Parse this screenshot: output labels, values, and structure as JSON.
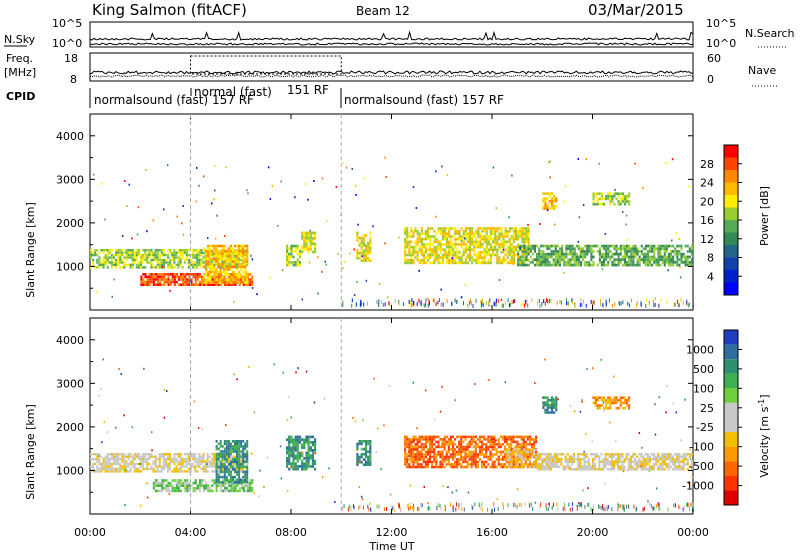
{
  "header": {
    "station": "King Salmon (fitACF)",
    "beam": "Beam 12",
    "date": "03/Mar/2015"
  },
  "strip_labels": {
    "nsky": "N.Sky",
    "freq": "Freq.",
    "freq_unit": "[MHz]",
    "cpid": "CPID",
    "nsearch": "N.Search",
    "nave": "Nave",
    "nsky_ticks": [
      "10^5",
      "10^0"
    ],
    "nsearch_ticks": [
      "10^5",
      "10^0"
    ],
    "freq_ticks": [
      "18",
      "8"
    ],
    "nave_ticks": [
      "60",
      "0"
    ]
  },
  "cpid_segments": [
    {
      "label": "normalsound (fast) 157 RF",
      "start_h": 0,
      "end_h": 4.0
    },
    {
      "label": "normal (fast)",
      "start_h": 4.0,
      "end_h": 6.0
    },
    {
      "label": "151 RF",
      "start_h": 6.0,
      "end_h": 10.0
    },
    {
      "label": "normalsound (fast) 157 RF",
      "start_h": 10.0,
      "end_h": 24.0
    }
  ],
  "colorbars": {
    "power": {
      "label": "Power [dB]",
      "ticks": [
        "28",
        "24",
        "20",
        "16",
        "12",
        "8",
        "4"
      ],
      "colors": [
        "#ff0000",
        "#ff4400",
        "#ff8800",
        "#ffbb00",
        "#ffee00",
        "#99cc33",
        "#55aa55",
        "#338855",
        "#226688",
        "#1144aa",
        "#0022cc",
        "#0000ff"
      ]
    },
    "velocity": {
      "label": "Velocity",
      "unit": "[m s",
      "unit_exp": "-1",
      "unit_close": "]",
      "ticks": [
        "1000",
        "500",
        "100",
        "25",
        "-25",
        "-100",
        "-500",
        "-1000"
      ],
      "colors": [
        "#1f3fbf",
        "#2f6f9f",
        "#2f8f6f",
        "#3faf4f",
        "#6fcf3f",
        "#c8c8c8",
        "#c8c8c8",
        "#f0c000",
        "#ff9900",
        "#ff6600",
        "#ff3300",
        "#e00000"
      ]
    }
  },
  "chart_data": [
    {
      "type": "heatmap",
      "name": "power",
      "ylabel": "Slant Range [km]",
      "xlabel": "Time UT",
      "ylim": [
        0,
        4500
      ],
      "yticks": [
        1000,
        2000,
        3000,
        4000
      ],
      "xlim": [
        0,
        24
      ],
      "xtick_labels": [
        "00:00",
        "04:00",
        "08:00",
        "12:00",
        "16:00",
        "20:00",
        "00:00"
      ],
      "regions": [
        {
          "t0": 0.0,
          "t1": 6.3,
          "r0": 950,
          "r1": 1400,
          "level": 6
        },
        {
          "t0": 2.0,
          "t1": 6.5,
          "r0": 550,
          "r1": 850,
          "level": 10
        },
        {
          "t0": 4.5,
          "t1": 6.3,
          "r0": 600,
          "r1": 1500,
          "level": 8
        },
        {
          "t0": 7.8,
          "t1": 8.4,
          "r0": 1000,
          "r1": 1500,
          "level": 6
        },
        {
          "t0": 8.4,
          "t1": 9.0,
          "r0": 1300,
          "r1": 1800,
          "level": 7
        },
        {
          "t0": 10.6,
          "t1": 11.2,
          "r0": 1100,
          "r1": 1800,
          "level": 7
        },
        {
          "t0": 12.5,
          "t1": 17.5,
          "r0": 1050,
          "r1": 1900,
          "level": 7
        },
        {
          "t0": 17.0,
          "t1": 24.0,
          "r0": 1000,
          "r1": 1500,
          "level": 5
        },
        {
          "t0": 18.0,
          "t1": 18.6,
          "r0": 2300,
          "r1": 2700,
          "level": 8
        },
        {
          "t0": 20.0,
          "t1": 21.5,
          "r0": 2400,
          "r1": 2700,
          "level": 6
        }
      ]
    },
    {
      "type": "heatmap",
      "name": "velocity",
      "ylabel": "Slant Range [km]",
      "xlabel": "Time UT",
      "ylim": [
        0,
        4500
      ],
      "yticks": [
        1000,
        2000,
        3000,
        4000
      ],
      "xlim": [
        0,
        24
      ],
      "xtick_labels": [
        "00:00",
        "04:00",
        "08:00",
        "12:00",
        "16:00",
        "20:00",
        "00:00"
      ],
      "regions": [
        {
          "t0": 0.0,
          "t1": 6.3,
          "r0": 950,
          "r1": 1400,
          "level": 5
        },
        {
          "t0": 2.5,
          "t1": 6.5,
          "r0": 500,
          "r1": 800,
          "level": 7
        },
        {
          "t0": 5.0,
          "t1": 6.3,
          "r0": 700,
          "r1": 1700,
          "level": 9
        },
        {
          "t0": 7.8,
          "t1": 9.0,
          "r0": 1000,
          "r1": 1800,
          "level": 9
        },
        {
          "t0": 10.6,
          "t1": 11.2,
          "r0": 1100,
          "r1": 1700,
          "level": 9
        },
        {
          "t0": 12.5,
          "t1": 17.8,
          "r0": 1050,
          "r1": 1800,
          "level": 2
        },
        {
          "t0": 16.5,
          "t1": 17.8,
          "r0": 1050,
          "r1": 1500,
          "level": 4
        },
        {
          "t0": 17.8,
          "t1": 24.0,
          "r0": 1000,
          "r1": 1400,
          "level": 5
        },
        {
          "t0": 18.0,
          "t1": 18.6,
          "r0": 2300,
          "r1": 2700,
          "level": 9
        },
        {
          "t0": 20.0,
          "t1": 21.5,
          "r0": 2400,
          "r1": 2700,
          "level": 3
        }
      ]
    }
  ]
}
